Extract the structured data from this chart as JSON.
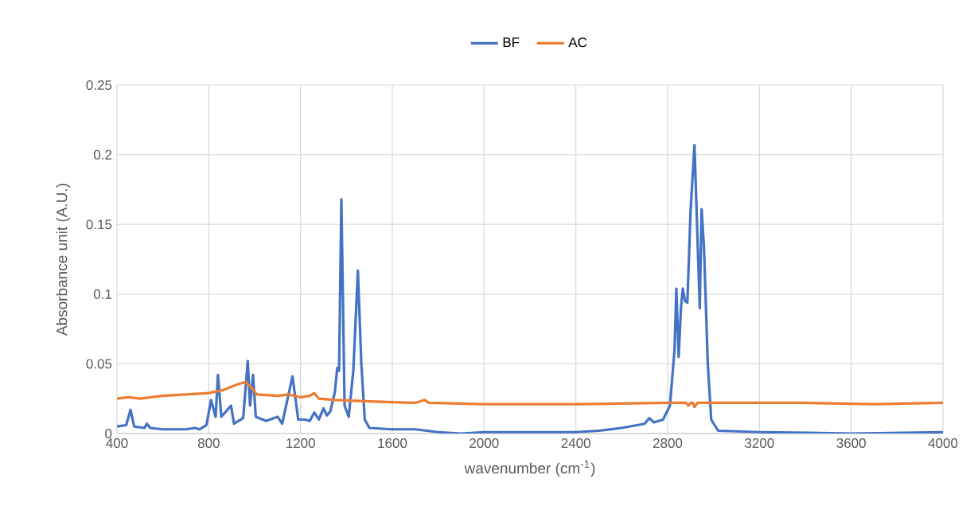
{
  "chart_data": {
    "type": "line",
    "xlabel": "wavenumber (cm$^{-1}$)",
    "ylabel": "Absorbance unit (A.U.)",
    "xlim": [
      400,
      4000
    ],
    "xticks": [
      400,
      800,
      1200,
      1600,
      2000,
      2400,
      2800,
      3200,
      3600,
      4000
    ],
    "ylim": [
      0,
      0.25
    ],
    "yticks": [
      0,
      0.05,
      0.1,
      0.15,
      0.2,
      0.25
    ],
    "grid": true,
    "legend": "top",
    "marker": "none",
    "line_style": "solid",
    "series": [
      {
        "name": "BF",
        "color": "#4472c4",
        "x": [
          400,
          440,
          459,
          475,
          520,
          530,
          545,
          600,
          700,
          740,
          760,
          790,
          810,
          830,
          840,
          855,
          897,
          910,
          950,
          970,
          980,
          993,
          1005,
          1050,
          1100,
          1120,
          1165,
          1190,
          1220,
          1240,
          1260,
          1280,
          1300,
          1315,
          1330,
          1350,
          1360,
          1368,
          1378,
          1392,
          1410,
          1430,
          1450,
          1465,
          1480,
          1500,
          1600,
          1700,
          1800,
          1900,
          2000,
          2200,
          2400,
          2500,
          2600,
          2700,
          2720,
          2740,
          2780,
          2810,
          2830,
          2838,
          2848,
          2858,
          2866,
          2876,
          2886,
          2900,
          2917,
          2935,
          2940,
          2948,
          2958,
          2975,
          2990,
          3020,
          3200,
          3600,
          4000
        ],
        "values": [
          0.005,
          0.006,
          0.017,
          0.005,
          0.004,
          0.007,
          0.004,
          0.003,
          0.003,
          0.004,
          0.003,
          0.006,
          0.024,
          0.012,
          0.042,
          0.012,
          0.02,
          0.007,
          0.011,
          0.052,
          0.02,
          0.042,
          0.012,
          0.009,
          0.012,
          0.007,
          0.041,
          0.01,
          0.01,
          0.009,
          0.015,
          0.01,
          0.018,
          0.013,
          0.016,
          0.03,
          0.047,
          0.045,
          0.168,
          0.02,
          0.012,
          0.045,
          0.117,
          0.05,
          0.01,
          0.004,
          0.003,
          0.003,
          0.001,
          0.0,
          0.001,
          0.001,
          0.001,
          0.002,
          0.004,
          0.007,
          0.011,
          0.008,
          0.01,
          0.02,
          0.06,
          0.104,
          0.055,
          0.09,
          0.104,
          0.095,
          0.094,
          0.16,
          0.207,
          0.115,
          0.09,
          0.161,
          0.135,
          0.05,
          0.01,
          0.002,
          0.001,
          0.0,
          0.001
        ]
      },
      {
        "name": "AC",
        "color": "#ed7d31",
        "x": [
          400,
          450,
          500,
          600,
          700,
          800,
          860,
          920,
          960,
          990,
          1010,
          1100,
          1150,
          1200,
          1240,
          1260,
          1280,
          1350,
          1500,
          1700,
          1740,
          1760,
          2000,
          2200,
          2400,
          2800,
          2880,
          2890,
          2900,
          2910,
          2917,
          2930,
          3200,
          3400,
          3700,
          4000
        ],
        "values": [
          0.025,
          0.026,
          0.025,
          0.027,
          0.028,
          0.029,
          0.031,
          0.035,
          0.037,
          0.032,
          0.028,
          0.027,
          0.028,
          0.026,
          0.027,
          0.029,
          0.025,
          0.024,
          0.023,
          0.022,
          0.024,
          0.022,
          0.021,
          0.021,
          0.021,
          0.022,
          0.022,
          0.02,
          0.022,
          0.022,
          0.019,
          0.022,
          0.022,
          0.022,
          0.021,
          0.022
        ]
      }
    ]
  }
}
